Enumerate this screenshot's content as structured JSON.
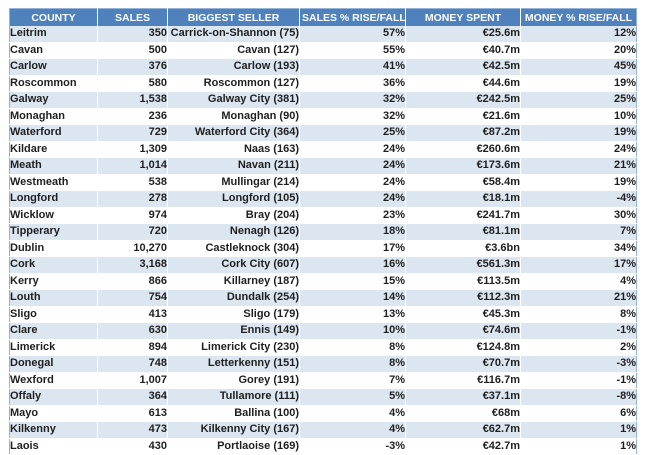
{
  "colors": {
    "header_bg": "#4F81BD",
    "header_text": "#FFFFFF",
    "banded_row_bg": "#DCE6F1",
    "plain_row_bg": "#FFFFFF",
    "outer_border": "#95B3D7",
    "body_text": "#1F1F1F"
  },
  "table": {
    "columns": [
      {
        "label": "COUNTY",
        "align": "left"
      },
      {
        "label": "SALES",
        "align": "right"
      },
      {
        "label": "BIGGEST SELLER",
        "align": "right"
      },
      {
        "label": "SALES % RISE/FALL",
        "align": "right"
      },
      {
        "label": "MONEY SPENT",
        "align": "right"
      },
      {
        "label": "MONEY % RISE/FALL",
        "align": "right"
      }
    ],
    "rows": [
      [
        "Leitrim",
        "350",
        "Carrick-on-Shannon (75)",
        "57%",
        "€25.6m",
        "12%"
      ],
      [
        "Cavan",
        "500",
        "Cavan (127)",
        "55%",
        "€40.7m",
        "20%"
      ],
      [
        "Carlow",
        "376",
        "Carlow (193)",
        "41%",
        "€42.5m",
        "45%"
      ],
      [
        "Roscommon",
        "580",
        "Roscommon (127)",
        "36%",
        "€44.6m",
        "19%"
      ],
      [
        "Galway",
        "1,538",
        "Galway City (381)",
        "32%",
        "€242.5m",
        "25%"
      ],
      [
        "Monaghan",
        "236",
        "Monaghan (90)",
        "32%",
        "€21.6m",
        "10%"
      ],
      [
        "Waterford",
        "729",
        "Waterford City (364)",
        "25%",
        "€87.2m",
        "19%"
      ],
      [
        "Kildare",
        "1,309",
        "Naas (163)",
        "24%",
        "€260.6m",
        "24%"
      ],
      [
        "Meath",
        "1,014",
        "Navan (211)",
        "24%",
        "€173.6m",
        "21%"
      ],
      [
        "Westmeath",
        "538",
        "Mullingar (214)",
        "24%",
        "€58.4m",
        "19%"
      ],
      [
        "Longford",
        "278",
        "Longford (105)",
        "24%",
        "€18.1m",
        "-4%"
      ],
      [
        "Wicklow",
        "974",
        "Bray (204)",
        "23%",
        "€241.7m",
        "30%"
      ],
      [
        "Tipperary",
        "720",
        "Nenagh (126)",
        "18%",
        "€81.1m",
        "7%"
      ],
      [
        "Dublin",
        "10,270",
        "Castleknock (304)",
        "17%",
        "€3.6bn",
        "34%"
      ],
      [
        "Cork",
        "3,168",
        "Cork City (607)",
        "16%",
        "€561.3m",
        "17%"
      ],
      [
        "Kerry",
        "866",
        "Killarney (187)",
        "15%",
        "€113.5m",
        "4%"
      ],
      [
        "Louth",
        "754",
        "Dundalk (254)",
        "14%",
        "€112.3m",
        "21%"
      ],
      [
        "Sligo",
        "413",
        "Sligo (179)",
        "13%",
        "€45.3m",
        "8%"
      ],
      [
        "Clare",
        "630",
        "Ennis (149)",
        "10%",
        "€74.6m",
        "-1%"
      ],
      [
        "Limerick",
        "894",
        "Limerick City (230)",
        "8%",
        "€124.8m",
        "2%"
      ],
      [
        "Donegal",
        "748",
        "Letterkenny (151)",
        "8%",
        "€70.7m",
        "-3%"
      ],
      [
        "Wexford",
        "1,007",
        "Gorey (191)",
        "7%",
        "€116.7m",
        "-1%"
      ],
      [
        "Offaly",
        "364",
        "Tullamore (111)",
        "5%",
        "€37.1m",
        "-8%"
      ],
      [
        "Mayo",
        "613",
        "Ballina (100)",
        "4%",
        "€68m",
        "6%"
      ],
      [
        "Kilkenny",
        "473",
        "Kilkenny City (167)",
        "4%",
        "€62.7m",
        "1%"
      ],
      [
        "Laois",
        "430",
        "Portlaoise (169)",
        "-3%",
        "€42.7m",
        "1%"
      ]
    ]
  }
}
